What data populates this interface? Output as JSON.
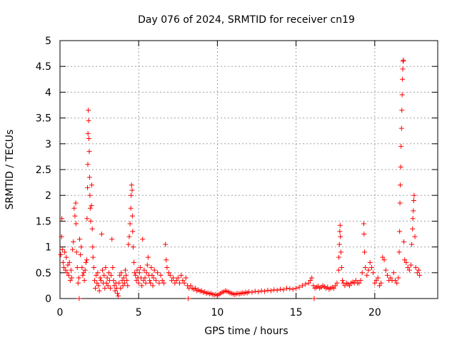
{
  "chart_data": {
    "type": "scatter",
    "title": "Day 076 of 2024, SRMTID for receiver cn19",
    "xlabel": "GPS time / hours",
    "ylabel": "SRMTID / TECUs",
    "xlim": [
      0,
      24
    ],
    "ylim": [
      0,
      5
    ],
    "x_ticks": [
      0,
      5,
      10,
      15,
      20
    ],
    "y_ticks": [
      0,
      0.5,
      1,
      1.5,
      2,
      2.5,
      3,
      3.5,
      4,
      4.5,
      5
    ],
    "x_tick_labels": [
      "0",
      "5",
      "10",
      "15",
      "20"
    ],
    "y_tick_labels": [
      "0",
      "0.5",
      "1",
      "1.5",
      "2",
      "2.5",
      "3",
      "3.5",
      "4",
      "4.5",
      "5"
    ],
    "grid": true,
    "marker": "+",
    "color": "#ff0000",
    "series": [
      {
        "name": "cn19",
        "points": [
          [
            0.05,
            0.85
          ],
          [
            0.1,
            1.2
          ],
          [
            0.12,
            1.55
          ],
          [
            0.15,
            0.95
          ],
          [
            0.2,
            0.7
          ],
          [
            0.25,
            0.6
          ],
          [
            0.3,
            0.9
          ],
          [
            0.35,
            0.55
          ],
          [
            0.4,
            0.8
          ],
          [
            0.45,
            0.5
          ],
          [
            0.5,
            0.65
          ],
          [
            0.55,
            0.45
          ],
          [
            0.6,
            0.7
          ],
          [
            0.65,
            0.35
          ],
          [
            0.7,
            0.55
          ],
          [
            0.75,
            0.4
          ],
          [
            0.8,
            0.95
          ],
          [
            0.85,
            1.1
          ],
          [
            0.9,
            1.75
          ],
          [
            0.95,
            1.6
          ],
          [
            1.0,
            1.85
          ],
          [
            1.02,
            1.45
          ],
          [
            1.05,
            0.9
          ],
          [
            1.1,
            0.6
          ],
          [
            1.15,
            0.3
          ],
          [
            1.2,
            0.4
          ],
          [
            1.22,
            0.0
          ],
          [
            1.25,
            1.15
          ],
          [
            1.3,
            0.85
          ],
          [
            1.35,
            1.0
          ],
          [
            1.4,
            0.6
          ],
          [
            1.45,
            0.45
          ],
          [
            1.5,
            0.5
          ],
          [
            1.55,
            0.35
          ],
          [
            1.6,
            0.55
          ],
          [
            1.65,
            0.7
          ],
          [
            1.7,
            0.75
          ],
          [
            1.72,
            1.55
          ],
          [
            1.75,
            2.15
          ],
          [
            1.77,
            2.6
          ],
          [
            1.78,
            3.2
          ],
          [
            1.8,
            3.65
          ],
          [
            1.82,
            3.45
          ],
          [
            1.84,
            3.1
          ],
          [
            1.86,
            2.85
          ],
          [
            1.88,
            2.35
          ],
          [
            1.9,
            2.0
          ],
          [
            1.92,
            1.75
          ],
          [
            1.95,
            1.5
          ],
          [
            2.0,
            1.8
          ],
          [
            2.02,
            2.2
          ],
          [
            2.05,
            1.35
          ],
          [
            2.08,
            1.0
          ],
          [
            2.1,
            0.8
          ],
          [
            2.15,
            0.6
          ],
          [
            2.2,
            0.35
          ],
          [
            2.25,
            0.2
          ],
          [
            2.3,
            0.45
          ],
          [
            2.35,
            0.3
          ],
          [
            2.4,
            0.5
          ],
          [
            2.45,
            0.25
          ],
          [
            2.5,
            0.15
          ],
          [
            2.55,
            0.4
          ],
          [
            2.6,
            0.35
          ],
          [
            2.65,
            1.25
          ],
          [
            2.7,
            0.55
          ],
          [
            2.75,
            0.3
          ],
          [
            2.8,
            0.45
          ],
          [
            2.85,
            0.2
          ],
          [
            2.9,
            0.6
          ],
          [
            2.95,
            0.3
          ],
          [
            3.0,
            0.4
          ],
          [
            3.05,
            0.25
          ],
          [
            3.1,
            0.5
          ],
          [
            3.15,
            0.35
          ],
          [
            3.2,
            0.2
          ],
          [
            3.25,
            0.45
          ],
          [
            3.3,
            1.15
          ],
          [
            3.35,
            0.6
          ],
          [
            3.4,
            0.35
          ],
          [
            3.45,
            0.25
          ],
          [
            3.5,
            0.15
          ],
          [
            3.55,
            0.3
          ],
          [
            3.6,
            0.2
          ],
          [
            3.65,
            0.1
          ],
          [
            3.7,
            0.05
          ],
          [
            3.75,
            0.3
          ],
          [
            3.8,
            0.45
          ],
          [
            3.85,
            0.2
          ],
          [
            3.9,
            0.5
          ],
          [
            3.95,
            0.35
          ],
          [
            4.0,
            0.25
          ],
          [
            4.05,
            0.4
          ],
          [
            4.1,
            0.3
          ],
          [
            4.15,
            0.55
          ],
          [
            4.2,
            0.45
          ],
          [
            4.25,
            0.35
          ],
          [
            4.3,
            0.25
          ],
          [
            4.35,
            1.05
          ],
          [
            4.4,
            1.2
          ],
          [
            4.45,
            1.45
          ],
          [
            4.5,
            1.75
          ],
          [
            4.52,
            2.0
          ],
          [
            4.55,
            2.2
          ],
          [
            4.58,
            2.1
          ],
          [
            4.6,
            1.6
          ],
          [
            4.62,
            1.3
          ],
          [
            4.65,
            1.0
          ],
          [
            4.7,
            0.7
          ],
          [
            4.75,
            0.5
          ],
          [
            4.8,
            0.45
          ],
          [
            4.85,
            0.35
          ],
          [
            4.9,
            0.55
          ],
          [
            4.95,
            0.4
          ],
          [
            5.0,
            0.3
          ],
          [
            5.05,
            0.5
          ],
          [
            5.1,
            0.6
          ],
          [
            5.15,
            0.4
          ],
          [
            5.2,
            0.25
          ],
          [
            5.25,
            1.15
          ],
          [
            5.3,
            0.35
          ],
          [
            5.35,
            0.55
          ],
          [
            5.4,
            0.4
          ],
          [
            5.45,
            0.3
          ],
          [
            5.5,
            0.5
          ],
          [
            5.55,
            0.65
          ],
          [
            5.6,
            0.8
          ],
          [
            5.65,
            0.45
          ],
          [
            5.7,
            0.35
          ],
          [
            5.75,
            0.3
          ],
          [
            5.8,
            0.6
          ],
          [
            5.85,
            0.45
          ],
          [
            5.9,
            0.25
          ],
          [
            5.95,
            0.4
          ],
          [
            6.0,
            0.55
          ],
          [
            6.1,
            0.35
          ],
          [
            6.2,
            0.5
          ],
          [
            6.3,
            0.3
          ],
          [
            6.4,
            0.45
          ],
          [
            6.5,
            0.35
          ],
          [
            6.6,
            0.3
          ],
          [
            6.7,
            1.05
          ],
          [
            6.75,
            0.75
          ],
          [
            6.8,
            0.6
          ],
          [
            6.9,
            0.5
          ],
          [
            7.0,
            0.45
          ],
          [
            7.1,
            0.35
          ],
          [
            7.2,
            0.4
          ],
          [
            7.3,
            0.3
          ],
          [
            7.4,
            0.35
          ],
          [
            7.5,
            0.4
          ],
          [
            7.6,
            0.3
          ],
          [
            7.7,
            0.45
          ],
          [
            7.8,
            0.35
          ],
          [
            7.9,
            0.3
          ],
          [
            8.0,
            0.4
          ],
          [
            8.1,
            0.25
          ],
          [
            8.15,
            0.0
          ],
          [
            8.2,
            0.2
          ],
          [
            8.3,
            0.25
          ],
          [
            8.4,
            0.2
          ],
          [
            8.5,
            0.18
          ],
          [
            8.6,
            0.2
          ],
          [
            8.7,
            0.15
          ],
          [
            8.8,
            0.17
          ],
          [
            8.9,
            0.14
          ],
          [
            9.0,
            0.15
          ],
          [
            9.1,
            0.12
          ],
          [
            9.2,
            0.13
          ],
          [
            9.3,
            0.1
          ],
          [
            9.4,
            0.11
          ],
          [
            9.5,
            0.09
          ],
          [
            9.6,
            0.1
          ],
          [
            9.7,
            0.08
          ],
          [
            9.8,
            0.07
          ],
          [
            9.9,
            0.08
          ],
          [
            10.0,
            0.06
          ],
          [
            10.1,
            0.08
          ],
          [
            10.2,
            0.1
          ],
          [
            10.3,
            0.12
          ],
          [
            10.4,
            0.13
          ],
          [
            10.5,
            0.15
          ],
          [
            10.6,
            0.14
          ],
          [
            10.7,
            0.13
          ],
          [
            10.8,
            0.11
          ],
          [
            10.9,
            0.1
          ],
          [
            11.0,
            0.09
          ],
          [
            11.1,
            0.08
          ],
          [
            11.2,
            0.09
          ],
          [
            11.3,
            0.1
          ],
          [
            11.4,
            0.09
          ],
          [
            11.5,
            0.1
          ],
          [
            11.6,
            0.11
          ],
          [
            11.7,
            0.1
          ],
          [
            11.8,
            0.12
          ],
          [
            11.9,
            0.11
          ],
          [
            12.0,
            0.13
          ],
          [
            12.2,
            0.12
          ],
          [
            12.4,
            0.14
          ],
          [
            12.6,
            0.13
          ],
          [
            12.8,
            0.15
          ],
          [
            13.0,
            0.14
          ],
          [
            13.2,
            0.16
          ],
          [
            13.4,
            0.15
          ],
          [
            13.6,
            0.17
          ],
          [
            13.8,
            0.16
          ],
          [
            14.0,
            0.18
          ],
          [
            14.2,
            0.17
          ],
          [
            14.4,
            0.2
          ],
          [
            14.6,
            0.19
          ],
          [
            14.8,
            0.18
          ],
          [
            15.0,
            0.2
          ],
          [
            15.2,
            0.22
          ],
          [
            15.4,
            0.25
          ],
          [
            15.6,
            0.28
          ],
          [
            15.8,
            0.3
          ],
          [
            15.9,
            0.35
          ],
          [
            16.0,
            0.4
          ],
          [
            16.1,
            0.25
          ],
          [
            16.15,
            0.0
          ],
          [
            16.2,
            0.2
          ],
          [
            16.3,
            0.22
          ],
          [
            16.4,
            0.24
          ],
          [
            16.5,
            0.2
          ],
          [
            16.6,
            0.22
          ],
          [
            16.7,
            0.25
          ],
          [
            16.8,
            0.23
          ],
          [
            16.9,
            0.2
          ],
          [
            17.0,
            0.22
          ],
          [
            17.1,
            0.18
          ],
          [
            17.2,
            0.2
          ],
          [
            17.3,
            0.22
          ],
          [
            17.4,
            0.2
          ],
          [
            17.5,
            0.25
          ],
          [
            17.6,
            0.3
          ],
          [
            17.7,
            0.55
          ],
          [
            17.72,
            0.8
          ],
          [
            17.75,
            1.05
          ],
          [
            17.78,
            1.3
          ],
          [
            17.8,
            1.42
          ],
          [
            17.82,
            1.2
          ],
          [
            17.85,
            0.9
          ],
          [
            17.9,
            0.6
          ],
          [
            17.95,
            0.35
          ],
          [
            18.0,
            0.3
          ],
          [
            18.1,
            0.25
          ],
          [
            18.2,
            0.3
          ],
          [
            18.3,
            0.28
          ],
          [
            18.4,
            0.25
          ],
          [
            18.5,
            0.3
          ],
          [
            18.6,
            0.32
          ],
          [
            18.7,
            0.3
          ],
          [
            18.8,
            0.35
          ],
          [
            18.9,
            0.3
          ],
          [
            19.0,
            0.3
          ],
          [
            19.1,
            0.35
          ],
          [
            19.2,
            0.5
          ],
          [
            19.3,
            1.45
          ],
          [
            19.32,
            1.25
          ],
          [
            19.35,
            0.9
          ],
          [
            19.4,
            0.6
          ],
          [
            19.5,
            0.45
          ],
          [
            19.6,
            0.55
          ],
          [
            19.7,
            0.7
          ],
          [
            19.8,
            0.6
          ],
          [
            19.9,
            0.5
          ],
          [
            20.0,
            0.3
          ],
          [
            20.1,
            0.35
          ],
          [
            20.2,
            0.4
          ],
          [
            20.3,
            0.25
          ],
          [
            20.4,
            0.3
          ],
          [
            20.5,
            0.8
          ],
          [
            20.6,
            0.75
          ],
          [
            20.7,
            0.55
          ],
          [
            20.8,
            0.45
          ],
          [
            20.9,
            0.35
          ],
          [
            21.0,
            0.4
          ],
          [
            21.1,
            0.35
          ],
          [
            21.2,
            0.5
          ],
          [
            21.3,
            0.35
          ],
          [
            21.4,
            0.3
          ],
          [
            21.5,
            0.4
          ],
          [
            21.55,
            0.9
          ],
          [
            21.58,
            1.3
          ],
          [
            21.6,
            1.85
          ],
          [
            21.62,
            2.2
          ],
          [
            21.65,
            2.55
          ],
          [
            21.67,
            2.95
          ],
          [
            21.7,
            3.3
          ],
          [
            21.72,
            3.65
          ],
          [
            21.74,
            3.95
          ],
          [
            21.76,
            4.25
          ],
          [
            21.78,
            4.45
          ],
          [
            21.8,
            4.6
          ],
          [
            21.82,
            4.62
          ],
          [
            21.85,
            1.1
          ],
          [
            21.9,
            0.75
          ],
          [
            22.0,
            0.7
          ],
          [
            22.1,
            0.6
          ],
          [
            22.2,
            0.55
          ],
          [
            22.3,
            0.65
          ],
          [
            22.35,
            1.05
          ],
          [
            22.4,
            1.35
          ],
          [
            22.42,
            1.55
          ],
          [
            22.45,
            1.7
          ],
          [
            22.48,
            1.9
          ],
          [
            22.5,
            2.0
          ],
          [
            22.55,
            1.2
          ],
          [
            22.6,
            0.6
          ],
          [
            22.7,
            0.5
          ],
          [
            22.8,
            0.55
          ],
          [
            22.85,
            0.45
          ]
        ]
      }
    ]
  }
}
